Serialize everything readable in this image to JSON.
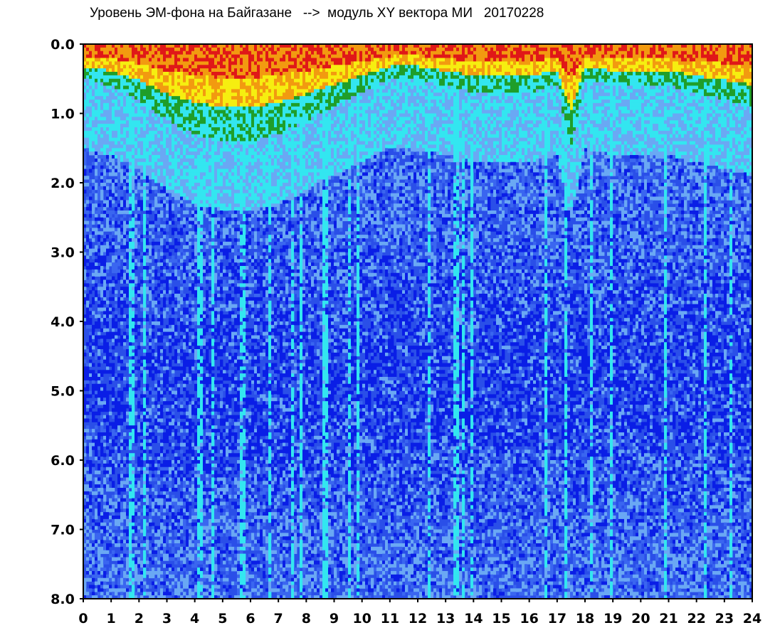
{
  "chart_data": {
    "type": "heatmap",
    "title": "Уровень ЭМ-фона на Байгазане   -->  модуль XY вектора МИ   20170228",
    "xlabel": "",
    "ylabel": "",
    "x_range": [
      0,
      24
    ],
    "y_range": [
      0.0,
      8.0
    ],
    "y_inverted": true,
    "x_ticks": [
      "0",
      "1",
      "2",
      "3",
      "4",
      "5",
      "6",
      "7",
      "8",
      "9",
      "10",
      "11",
      "12",
      "13",
      "14",
      "15",
      "16",
      "17",
      "18",
      "19",
      "20",
      "21",
      "22",
      "23",
      "24"
    ],
    "y_ticks": [
      "0.0",
      "1.0",
      "2.0",
      "3.0",
      "4.0",
      "5.0",
      "6.0",
      "7.0",
      "8.0"
    ],
    "colorscale": [
      "#0a1ee6",
      "#3a66f0",
      "#6aa8f4",
      "#33e6f0",
      "#1f9e2a",
      "#f6ee10",
      "#f29a10",
      "#e01818"
    ],
    "grid": false,
    "legend": "none",
    "notes_upper_band_depth_by_hour": {
      "x": [
        0,
        1,
        2,
        3,
        4,
        5,
        6,
        7,
        8,
        9,
        10,
        11,
        12,
        13,
        14,
        15,
        16,
        17,
        17.5,
        18,
        19,
        20,
        21,
        22,
        23,
        24
      ],
      "y": [
        0.5,
        0.6,
        0.8,
        1.1,
        1.3,
        1.4,
        1.4,
        1.3,
        1.1,
        0.9,
        0.7,
        0.5,
        0.5,
        0.6,
        0.7,
        0.7,
        0.7,
        0.6,
        1.5,
        0.5,
        0.6,
        0.6,
        0.6,
        0.7,
        0.8,
        0.9
      ]
    }
  }
}
